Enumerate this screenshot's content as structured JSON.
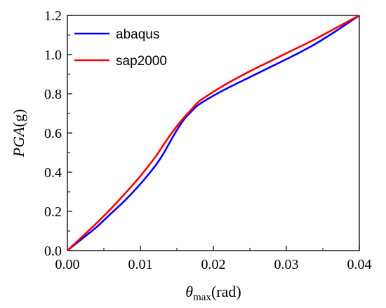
{
  "chart_data": {
    "type": "line",
    "xlabel": {
      "symbol": "θ",
      "subscript": "max",
      "unit": "(rad)"
    },
    "ylabel": {
      "symbol": "PGA",
      "unit": "(g)"
    },
    "xlim": [
      0,
      0.04
    ],
    "ylim": [
      0,
      1.2
    ],
    "xticks": [
      "0.00",
      "0.01",
      "0.02",
      "0.03",
      "0.04"
    ],
    "yticks": [
      "0.0",
      "0.2",
      "0.4",
      "0.6",
      "0.8",
      "1.0",
      "1.2"
    ],
    "xtick_values": [
      0,
      0.01,
      0.02,
      0.03,
      0.04
    ],
    "ytick_values": [
      0,
      0.2,
      0.4,
      0.6,
      0.8,
      1.0,
      1.2
    ],
    "legend_position": "top-left",
    "series": [
      {
        "name": "abaqus",
        "color": "#0000ff",
        "points": [
          [
            0,
            0
          ],
          [
            0.002,
            0.06
          ],
          [
            0.004,
            0.12
          ],
          [
            0.006,
            0.19
          ],
          [
            0.008,
            0.26
          ],
          [
            0.01,
            0.34
          ],
          [
            0.012,
            0.43
          ],
          [
            0.013,
            0.485
          ],
          [
            0.014,
            0.55
          ],
          [
            0.015,
            0.615
          ],
          [
            0.016,
            0.67
          ],
          [
            0.017,
            0.71
          ],
          [
            0.018,
            0.745
          ],
          [
            0.02,
            0.79
          ],
          [
            0.022,
            0.83
          ],
          [
            0.025,
            0.885
          ],
          [
            0.028,
            0.94
          ],
          [
            0.031,
            0.995
          ],
          [
            0.034,
            1.055
          ],
          [
            0.037,
            1.125
          ],
          [
            0.04,
            1.2
          ]
        ]
      },
      {
        "name": "sap2000",
        "color": "#ff0000",
        "points": [
          [
            0,
            0
          ],
          [
            0.002,
            0.07
          ],
          [
            0.004,
            0.14
          ],
          [
            0.006,
            0.215
          ],
          [
            0.008,
            0.295
          ],
          [
            0.01,
            0.38
          ],
          [
            0.012,
            0.475
          ],
          [
            0.013,
            0.53
          ],
          [
            0.014,
            0.585
          ],
          [
            0.015,
            0.635
          ],
          [
            0.016,
            0.68
          ],
          [
            0.017,
            0.72
          ],
          [
            0.018,
            0.76
          ],
          [
            0.02,
            0.81
          ],
          [
            0.022,
            0.855
          ],
          [
            0.025,
            0.915
          ],
          [
            0.028,
            0.97
          ],
          [
            0.031,
            1.025
          ],
          [
            0.034,
            1.08
          ],
          [
            0.037,
            1.14
          ],
          [
            0.04,
            1.2
          ]
        ]
      }
    ]
  }
}
